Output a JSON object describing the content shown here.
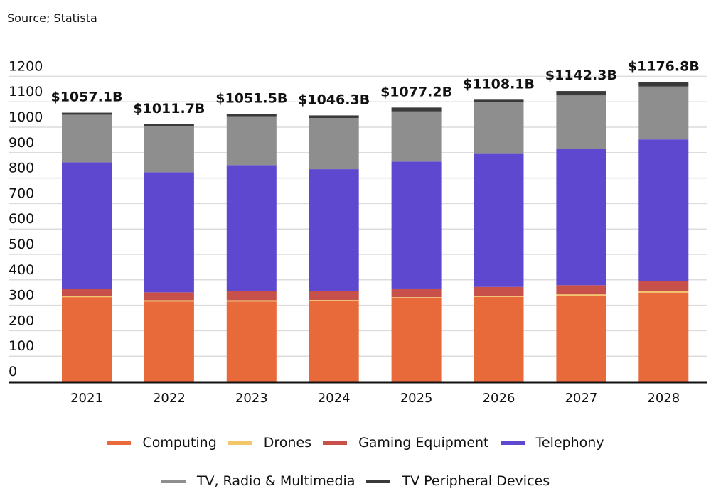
{
  "source_note": "Source; Statista",
  "chart_data": {
    "type": "bar",
    "stacked": true,
    "title": "",
    "xlabel": "",
    "ylabel": "",
    "ylim": [
      0,
      1200
    ],
    "yticks": [
      0,
      100,
      200,
      300,
      400,
      500,
      600,
      700,
      800,
      900,
      1000,
      1100,
      1200
    ],
    "grid": true,
    "legend_position": "bottom",
    "categories": [
      "2021",
      "2022",
      "2023",
      "2024",
      "2025",
      "2026",
      "2027",
      "2028"
    ],
    "totals": [
      1057.1,
      1011.7,
      1051.5,
      1046.3,
      1077.2,
      1108.1,
      1142.3,
      1176.8
    ],
    "total_labels": [
      "$1057.1B",
      "$1011.7B",
      "$1051.5B",
      "$1046.3B",
      "$1077.2B",
      "$1108.1B",
      "$1142.3B",
      "$1176.8B"
    ],
    "series": [
      {
        "name": "Computing",
        "color": "#E8693A",
        "values": [
          332.0,
          315.0,
          315.0,
          316.0,
          327.0,
          333.0,
          338.0,
          350.0
        ]
      },
      {
        "name": "Drones",
        "color": "#F2C76A",
        "values": [
          5.0,
          5.0,
          5.0,
          5.0,
          5.0,
          5.0,
          5.0,
          5.0
        ]
      },
      {
        "name": "Gaming Equipment",
        "color": "#C8504A",
        "values": [
          27.0,
          31.0,
          36.0,
          36.0,
          34.0,
          34.0,
          36.0,
          39.0
        ]
      },
      {
        "name": "Telephony",
        "color": "#5E48D0",
        "values": [
          498.0,
          472.0,
          495.0,
          478.0,
          499.0,
          523.0,
          537.0,
          558.0
        ]
      },
      {
        "name": "TV, Radio & Multimedia",
        "color": "#8E8E8E",
        "values": [
          187.0,
          180.0,
          192.0,
          201.0,
          197.0,
          204.0,
          209.0,
          208.0
        ]
      },
      {
        "name": "TV Peripheral Devices",
        "color": "#3A3A3A",
        "values": [
          8.1,
          8.7,
          8.5,
          10.3,
          15.2,
          9.1,
          17.3,
          16.8
        ]
      }
    ]
  },
  "legend": {
    "row1": [
      {
        "label": "Computing",
        "color": "#E8693A"
      },
      {
        "label": "Drones",
        "color": "#F2C76A"
      },
      {
        "label": "Gaming Equipment",
        "color": "#C8504A"
      },
      {
        "label": "Telephony",
        "color": "#5E48D0"
      }
    ],
    "row2": [
      {
        "label": "TV, Radio & Multimedia",
        "color": "#8E8E8E"
      },
      {
        "label": "TV Peripheral Devices",
        "color": "#3A3A3A"
      }
    ]
  }
}
